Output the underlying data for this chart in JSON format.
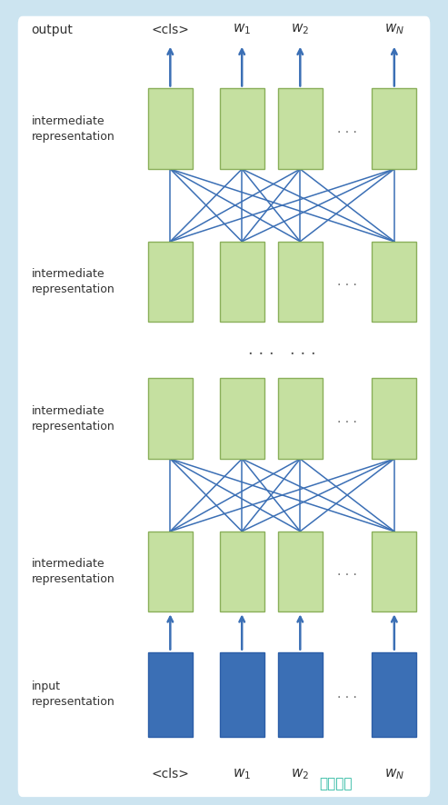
{
  "bg_color": "#cce4f0",
  "panel_color": "#ffffff",
  "green_color": "#c5e0a0",
  "green_edge": "#8aaf5a",
  "blue_color": "#3b6fb5",
  "blue_dark": "#2c5ea8",
  "arrow_color": "#3b6fb5",
  "text_color": "#333333",
  "cols": [
    0.38,
    0.54,
    0.67,
    0.88
  ],
  "col_labels_top": [
    "<cls>",
    "w_1",
    "w_2",
    "w_N"
  ],
  "col_labels_bot": [
    "<cls>",
    "w_1",
    "w_2",
    "w_N"
  ],
  "watermark": "谷普下载",
  "watermark_color": "#2ab8a0"
}
